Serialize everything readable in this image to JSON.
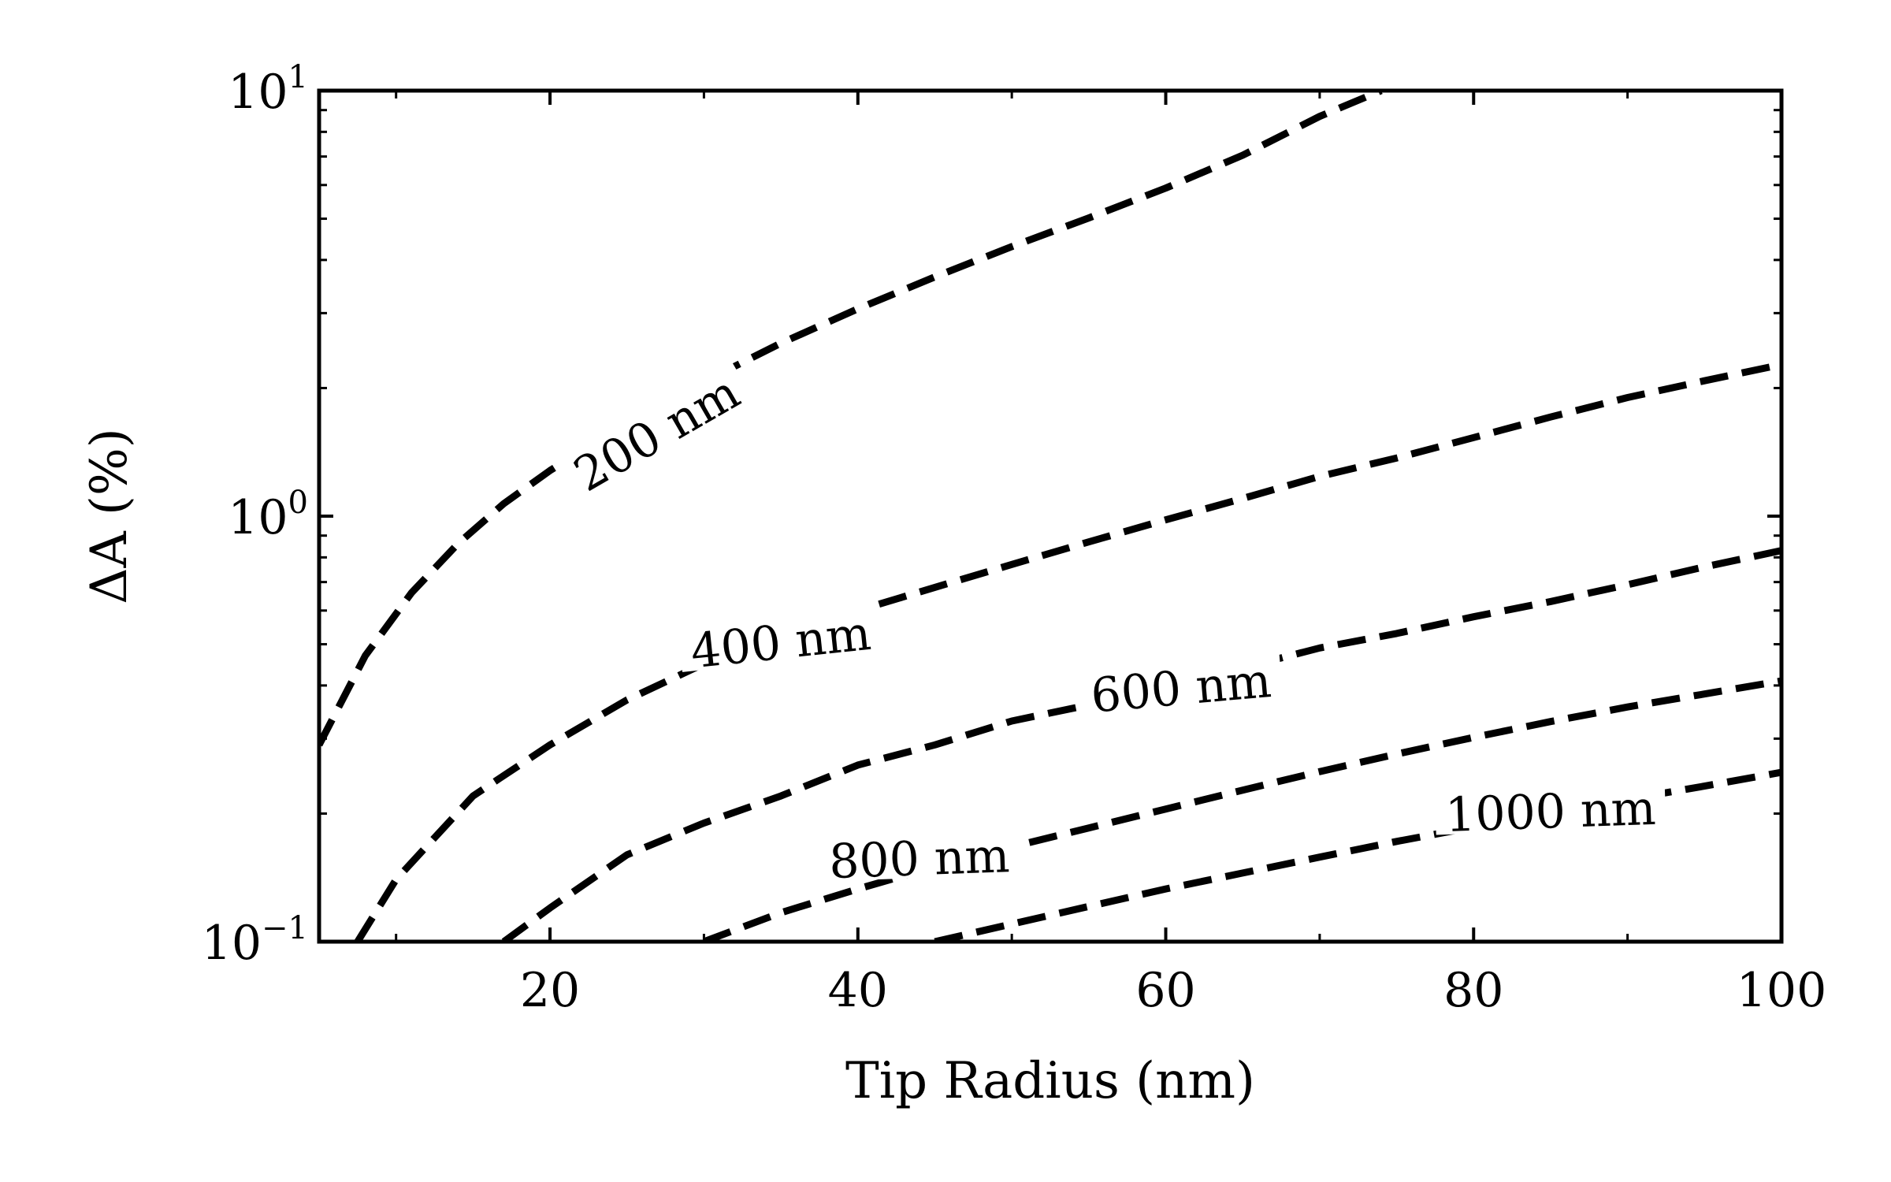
{
  "chart_data": {
    "type": "line",
    "title": "",
    "xlabel": "Tip Radius (nm)",
    "ylabel": "ΔA (%)",
    "xlim": [
      5,
      100
    ],
    "ylim": [
      0.1,
      10
    ],
    "yscale": "log",
    "grid": false,
    "legend": "none (inline curve labels)",
    "line_style": "dashed",
    "line_color": "#000000",
    "x_ticks": [
      {
        "value": 20,
        "label": "20"
      },
      {
        "value": 40,
        "label": "40"
      },
      {
        "value": 60,
        "label": "60"
      },
      {
        "value": 80,
        "label": "80"
      },
      {
        "value": 100,
        "label": "100"
      }
    ],
    "y_ticks": [
      {
        "value": 0.1,
        "base": "10",
        "exp": "−1"
      },
      {
        "value": 1,
        "base": "10",
        "exp": "0"
      },
      {
        "value": 10,
        "base": "10",
        "exp": "1"
      }
    ],
    "series": [
      {
        "name": "200 nm",
        "label_at": [
          27,
          1.55
        ],
        "x": [
          5,
          8,
          11,
          14,
          17,
          20,
          25,
          30,
          35,
          40,
          45,
          50,
          55,
          60,
          65,
          70,
          74
        ],
        "y": [
          0.29,
          0.47,
          0.66,
          0.86,
          1.07,
          1.28,
          1.66,
          2.07,
          2.55,
          3.07,
          3.65,
          4.3,
          5.02,
          5.9,
          7.05,
          8.7,
          10.0
        ]
      },
      {
        "name": "400 nm",
        "label_at": [
          35,
          0.5
        ],
        "x": [
          7.5,
          10,
          15,
          20,
          25,
          30,
          35,
          40,
          45,
          50,
          55,
          60,
          65,
          70,
          75,
          80,
          85,
          90,
          95,
          100
        ],
        "y": [
          0.1,
          0.14,
          0.22,
          0.29,
          0.37,
          0.45,
          0.52,
          0.6,
          0.68,
          0.77,
          0.87,
          0.98,
          1.1,
          1.24,
          1.37,
          1.53,
          1.71,
          1.9,
          2.08,
          2.27
        ]
      },
      {
        "name": "600 nm",
        "label_at": [
          61,
          0.39
        ],
        "x": [
          17,
          20,
          25,
          30,
          35,
          40,
          45,
          50,
          55,
          60,
          65,
          70,
          75,
          80,
          85,
          90,
          95,
          100
        ],
        "y": [
          0.1,
          0.12,
          0.16,
          0.19,
          0.22,
          0.26,
          0.29,
          0.33,
          0.36,
          0.4,
          0.44,
          0.49,
          0.53,
          0.58,
          0.63,
          0.69,
          0.76,
          0.83
        ]
      },
      {
        "name": "800 nm",
        "label_at": [
          44,
          0.155
        ],
        "x": [
          30,
          35,
          40,
          45,
          50,
          55,
          60,
          65,
          70,
          75,
          80,
          85,
          90,
          95,
          100
        ],
        "y": [
          0.1,
          0.117,
          0.133,
          0.15,
          0.167,
          0.185,
          0.205,
          0.227,
          0.251,
          0.276,
          0.302,
          0.329,
          0.356,
          0.382,
          0.41
        ]
      },
      {
        "name": "1000 nm",
        "label_at": [
          85,
          0.2
        ],
        "x": [
          45,
          50,
          55,
          60,
          65,
          70,
          75,
          80,
          85,
          90,
          95,
          100
        ],
        "y": [
          0.1,
          0.11,
          0.121,
          0.133,
          0.145,
          0.158,
          0.172,
          0.186,
          0.201,
          0.216,
          0.232,
          0.25
        ]
      }
    ]
  }
}
